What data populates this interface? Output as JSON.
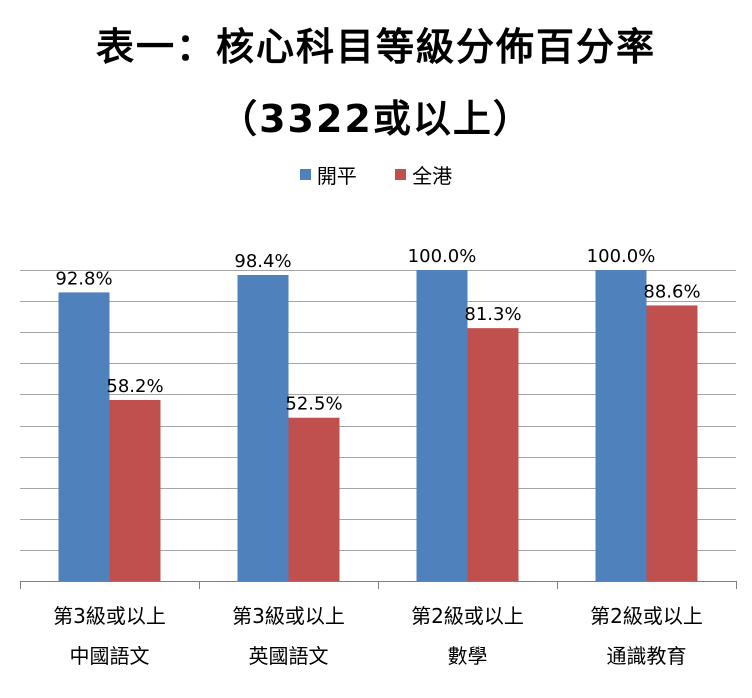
{
  "title": "表一：核心科目等級分佈百分率",
  "subtitle": "（3322或以上）",
  "chart_data": {
    "type": "bar",
    "categories": [
      [
        "第3級或以上",
        "中國語文"
      ],
      [
        "第3級或以上",
        "英國語文"
      ],
      [
        "第2級或以上",
        "數學"
      ],
      [
        "第2級或以上",
        "通識教育"
      ]
    ],
    "series": [
      {
        "name": "開平",
        "color": "#4F81BD",
        "values": [
          92.8,
          98.4,
          100.0,
          100.0
        ],
        "labels": [
          "92.8%",
          "98.4%",
          "100.0%",
          "100.0%"
        ]
      },
      {
        "name": "全港",
        "color": "#C0504D",
        "values": [
          58.2,
          52.5,
          81.3,
          88.6
        ],
        "labels": [
          "58.2%",
          "52.5%",
          "81.3%",
          "88.6%"
        ]
      }
    ],
    "ylim": [
      0,
      100
    ],
    "grid": true,
    "legend_position": "top"
  }
}
